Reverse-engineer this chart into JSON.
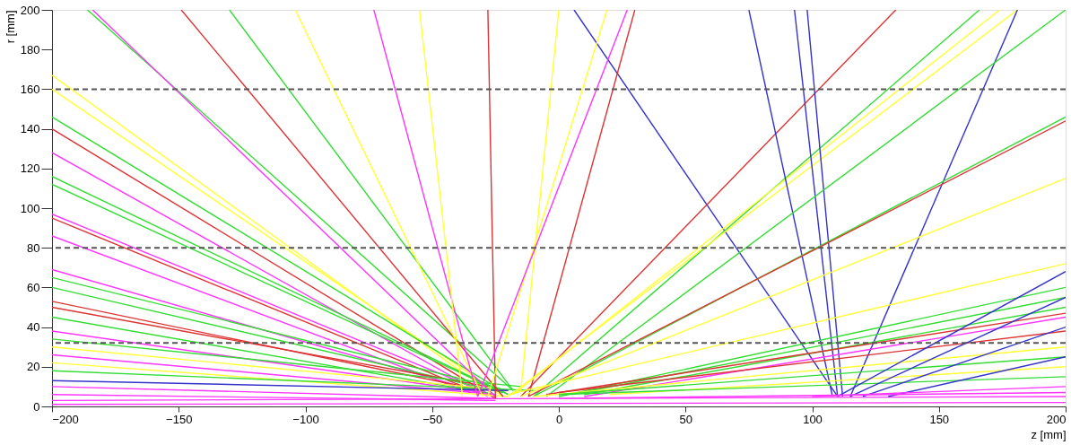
{
  "chart_data": {
    "type": "line",
    "xlabel": "z [mm]",
    "ylabel": "r [mm]",
    "xlim": [
      -200,
      200
    ],
    "ylim": [
      0,
      200
    ],
    "xticks": [
      -200,
      -150,
      -100,
      -50,
      0,
      50,
      100,
      150,
      200
    ],
    "yticks": [
      0,
      20,
      40,
      60,
      80,
      100,
      120,
      140,
      160,
      180,
      200
    ],
    "grid": false,
    "legend": false,
    "line_style": "solid",
    "ref_lines": [
      {
        "axis": "y",
        "value": 160,
        "color": "#555555",
        "line_style": "dashed"
      },
      {
        "axis": "y",
        "value": 80,
        "color": "#555555",
        "line_style": "dashed"
      },
      {
        "axis": "y",
        "value": 32,
        "color": "#555555",
        "line_style": "dashed"
      }
    ],
    "series": [
      {
        "color": "#ffff33",
        "x": [
          -200,
          -25
        ],
        "values": [
          167,
          5
        ]
      },
      {
        "color": "#ffff33",
        "x": [
          -200,
          -22
        ],
        "values": [
          160,
          5
        ]
      },
      {
        "color": "#33dd33",
        "x": [
          -200,
          -20
        ],
        "values": [
          146,
          6
        ]
      },
      {
        "color": "#dd3333",
        "x": [
          -200,
          -25
        ],
        "values": [
          140,
          4
        ]
      },
      {
        "color": "#ff33ff",
        "x": [
          -200,
          -28
        ],
        "values": [
          128,
          5
        ]
      },
      {
        "color": "#33dd33",
        "x": [
          -200,
          -20
        ],
        "values": [
          116,
          6
        ]
      },
      {
        "color": "#33dd33",
        "x": [
          -200,
          -22
        ],
        "values": [
          112,
          7
        ]
      },
      {
        "color": "#ff33ff",
        "x": [
          -200,
          -25
        ],
        "values": [
          97,
          5
        ]
      },
      {
        "color": "#dd3333",
        "x": [
          -200,
          -30
        ],
        "values": [
          95,
          6
        ]
      },
      {
        "color": "#ff33ff",
        "x": [
          -200,
          -35
        ],
        "values": [
          86,
          7
        ]
      },
      {
        "color": "#ff33ff",
        "x": [
          -200,
          -25
        ],
        "values": [
          69,
          5
        ]
      },
      {
        "color": "#33dd33",
        "x": [
          -200,
          -20
        ],
        "values": [
          65,
          8
        ]
      },
      {
        "color": "#33dd33",
        "x": [
          -200,
          -22
        ],
        "values": [
          60,
          7
        ]
      },
      {
        "color": "#dd3333",
        "x": [
          -200,
          -30
        ],
        "values": [
          53,
          8
        ]
      },
      {
        "color": "#dd3333",
        "x": [
          -200,
          -28
        ],
        "values": [
          50,
          10
        ]
      },
      {
        "color": "#33dd33",
        "x": [
          -200,
          -25
        ],
        "values": [
          45,
          6
        ]
      },
      {
        "color": "#ff33ff",
        "x": [
          -200,
          -30
        ],
        "values": [
          38,
          7
        ]
      },
      {
        "color": "#33dd33",
        "x": [
          -200,
          -15
        ],
        "values": [
          34,
          10
        ]
      },
      {
        "color": "#ffff33",
        "x": [
          -200,
          -20
        ],
        "values": [
          30,
          8
        ]
      },
      {
        "color": "#ff33ff",
        "x": [
          -200,
          -25
        ],
        "values": [
          26,
          6
        ]
      },
      {
        "color": "#ffff33",
        "x": [
          -200,
          -20
        ],
        "values": [
          22,
          5
        ]
      },
      {
        "color": "#33dd33",
        "x": [
          -200,
          -10
        ],
        "values": [
          18,
          8
        ]
      },
      {
        "color": "#3333cc",
        "x": [
          -200,
          -20
        ],
        "values": [
          13,
          8
        ]
      },
      {
        "color": "#ff33ff",
        "x": [
          -200,
          -25
        ],
        "values": [
          10,
          4
        ]
      },
      {
        "color": "#ff33ff",
        "x": [
          -200,
          -25
        ],
        "values": [
          6,
          3
        ]
      },
      {
        "color": "#ff33ff",
        "x": [
          -200,
          200
        ],
        "values": [
          3,
          5
        ]
      },
      {
        "color": "#ff33ff",
        "x": [
          -200,
          200
        ],
        "values": [
          1,
          2
        ]
      },
      {
        "color": "#33dd33",
        "x": [
          -186,
          -18
        ],
        "values": [
          200,
          8
        ]
      },
      {
        "color": "#ff33ff",
        "x": [
          -184,
          -25
        ],
        "values": [
          200,
          5
        ]
      },
      {
        "color": "#dd3333",
        "x": [
          -149,
          -22
        ],
        "values": [
          200,
          5
        ]
      },
      {
        "color": "#33dd33",
        "x": [
          -130,
          -18
        ],
        "values": [
          200,
          8
        ]
      },
      {
        "color": "#ffff33",
        "x": [
          -104,
          -30
        ],
        "values": [
          200,
          5
        ]
      },
      {
        "color": "#ff33ff",
        "x": [
          -73,
          -32
        ],
        "values": [
          200,
          5
        ]
      },
      {
        "color": "#ffff33",
        "x": [
          -55,
          -38
        ],
        "values": [
          200,
          5
        ]
      },
      {
        "color": "#dd3333",
        "x": [
          -28,
          -25
        ],
        "values": [
          200,
          4
        ]
      },
      {
        "color": "#ffff33",
        "x": [
          0,
          -15
        ],
        "values": [
          200,
          8
        ]
      },
      {
        "color": "#3333cc",
        "x": [
          6,
          110
        ],
        "values": [
          200,
          5
        ]
      },
      {
        "color": "#ffff33",
        "x": [
          19,
          -28
        ],
        "values": [
          200,
          5
        ]
      },
      {
        "color": "#ff33ff",
        "x": [
          27,
          -32
        ],
        "values": [
          200,
          5
        ]
      },
      {
        "color": "#dd3333",
        "x": [
          30,
          -12
        ],
        "values": [
          200,
          5
        ]
      },
      {
        "color": "#dd3333",
        "x": [
          -15,
          133
        ],
        "values": [
          5,
          200
        ]
      },
      {
        "color": "#33dd33",
        "x": [
          -10,
          166
        ],
        "values": [
          5,
          200
        ]
      },
      {
        "color": "#ffff33",
        "x": [
          -18,
          174
        ],
        "values": [
          6,
          200
        ]
      },
      {
        "color": "#ffff33",
        "x": [
          -20,
          181
        ],
        "values": [
          5,
          200
        ]
      },
      {
        "color": "#3333cc",
        "x": [
          75,
          108
        ],
        "values": [
          200,
          5
        ]
      },
      {
        "color": "#3333cc",
        "x": [
          93,
          110
        ],
        "values": [
          200,
          5
        ]
      },
      {
        "color": "#3333cc",
        "x": [
          98,
          112
        ],
        "values": [
          200,
          5
        ]
      },
      {
        "color": "#3333cc",
        "x": [
          115,
          181
        ],
        "values": [
          5,
          200
        ]
      },
      {
        "color": "#33dd33",
        "x": [
          -5,
          200
        ],
        "values": [
          5,
          200
        ]
      },
      {
        "color": "#33dd33",
        "x": [
          -10,
          200
        ],
        "values": [
          5,
          146
        ]
      },
      {
        "color": "#dd3333",
        "x": [
          -12,
          200
        ],
        "values": [
          5,
          144
        ]
      },
      {
        "color": "#ffff33",
        "x": [
          -15,
          200
        ],
        "values": [
          5,
          115
        ]
      },
      {
        "color": "#ffff33",
        "x": [
          -20,
          200
        ],
        "values": [
          6,
          72
        ]
      },
      {
        "color": "#33dd33",
        "x": [
          0,
          200
        ],
        "values": [
          5,
          60
        ]
      },
      {
        "color": "#33dd33",
        "x": [
          5,
          200
        ],
        "values": [
          6,
          55
        ]
      },
      {
        "color": "#33dd33",
        "x": [
          10,
          200
        ],
        "values": [
          6,
          50
        ]
      },
      {
        "color": "#dd3333",
        "x": [
          -5,
          200
        ],
        "values": [
          6,
          47
        ]
      },
      {
        "color": "#ff33ff",
        "x": [
          10,
          200
        ],
        "values": [
          5,
          45
        ]
      },
      {
        "color": "#dd3333",
        "x": [
          0,
          200
        ],
        "values": [
          7,
          38
        ]
      },
      {
        "color": "#ffff33",
        "x": [
          -10,
          200
        ],
        "values": [
          5,
          30
        ]
      },
      {
        "color": "#33dd33",
        "x": [
          0,
          200
        ],
        "values": [
          6,
          25
        ]
      },
      {
        "color": "#ffff33",
        "x": [
          20,
          200
        ],
        "values": [
          6,
          20
        ]
      },
      {
        "color": "#33dd33",
        "x": [
          0,
          200
        ],
        "values": [
          6,
          15
        ]
      },
      {
        "color": "#3333cc",
        "x": [
          110,
          200
        ],
        "values": [
          5,
          68
        ]
      },
      {
        "color": "#3333cc",
        "x": [
          115,
          200
        ],
        "values": [
          5,
          55
        ]
      },
      {
        "color": "#3333cc",
        "x": [
          120,
          200
        ],
        "values": [
          5,
          40
        ]
      },
      {
        "color": "#3333cc",
        "x": [
          130,
          200
        ],
        "values": [
          5,
          25
        ]
      },
      {
        "color": "#ff33ff",
        "x": [
          100,
          200
        ],
        "values": [
          5,
          10
        ]
      },
      {
        "color": "#ff33ff",
        "x": [
          0,
          200
        ],
        "values": [
          4,
          7
        ]
      }
    ]
  }
}
